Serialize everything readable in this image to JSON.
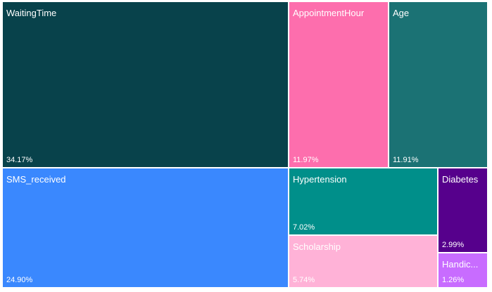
{
  "chart_data": {
    "type": "treemap",
    "items": [
      {
        "name": "WaitingTime",
        "value": 34.17,
        "pct_label": "34.17%",
        "color": "#08424B"
      },
      {
        "name": "SMS_received",
        "value": 24.9,
        "pct_label": "24.90%",
        "color": "#3A88FE"
      },
      {
        "name": "AppointmentHour",
        "value": 11.97,
        "pct_label": "11.97%",
        "color": "#FD6EAD"
      },
      {
        "name": "Age",
        "value": 11.91,
        "pct_label": "11.91%",
        "color": "#1B7274"
      },
      {
        "name": "Hypertension",
        "value": 7.02,
        "pct_label": "7.02%",
        "color": "#008F8A"
      },
      {
        "name": "Scholarship",
        "value": 5.74,
        "pct_label": "5.74%",
        "color": "#FFB2D7"
      },
      {
        "name": "Diabetes",
        "value": 2.99,
        "pct_label": "2.99%",
        "color": "#56008C"
      },
      {
        "name": "Handic...",
        "value": 1.26,
        "pct_label": "1.26%",
        "color": "#C86CFF"
      }
    ]
  }
}
